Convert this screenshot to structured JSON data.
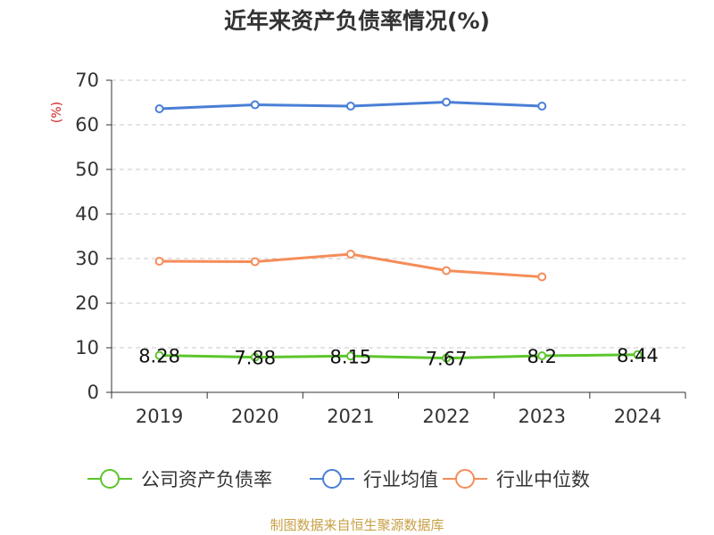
{
  "chart_data": {
    "type": "line",
    "title": "近年来资产负债率情况(%)",
    "ylabel": "(%)",
    "xlabel": "",
    "categories": [
      "2019",
      "2020",
      "2021",
      "2022",
      "2023",
      "2024"
    ],
    "ylim": [
      0,
      70
    ],
    "yticks": [
      0,
      10,
      20,
      30,
      40,
      50,
      60,
      70
    ],
    "grid": true,
    "legend_position": "bottom",
    "series": [
      {
        "name": "公司资产负债率",
        "color": "#5cc62c",
        "show_labels": true,
        "values": [
          8.28,
          7.88,
          8.15,
          7.67,
          8.2,
          8.44
        ],
        "labels": [
          "8.28",
          "7.88",
          "8.15",
          "7.67",
          "8.2",
          "8.44"
        ]
      },
      {
        "name": "行业均值",
        "color": "#4a7fd6",
        "show_labels": false,
        "values": [
          63.6,
          64.5,
          64.2,
          65.1,
          64.2,
          null
        ]
      },
      {
        "name": "行业中位数",
        "color": "#f58d59",
        "show_labels": false,
        "values": [
          29.4,
          29.3,
          31.0,
          27.3,
          25.9,
          null
        ]
      }
    ]
  },
  "footer": {
    "source": "制图数据来自恒生聚源数据库"
  }
}
